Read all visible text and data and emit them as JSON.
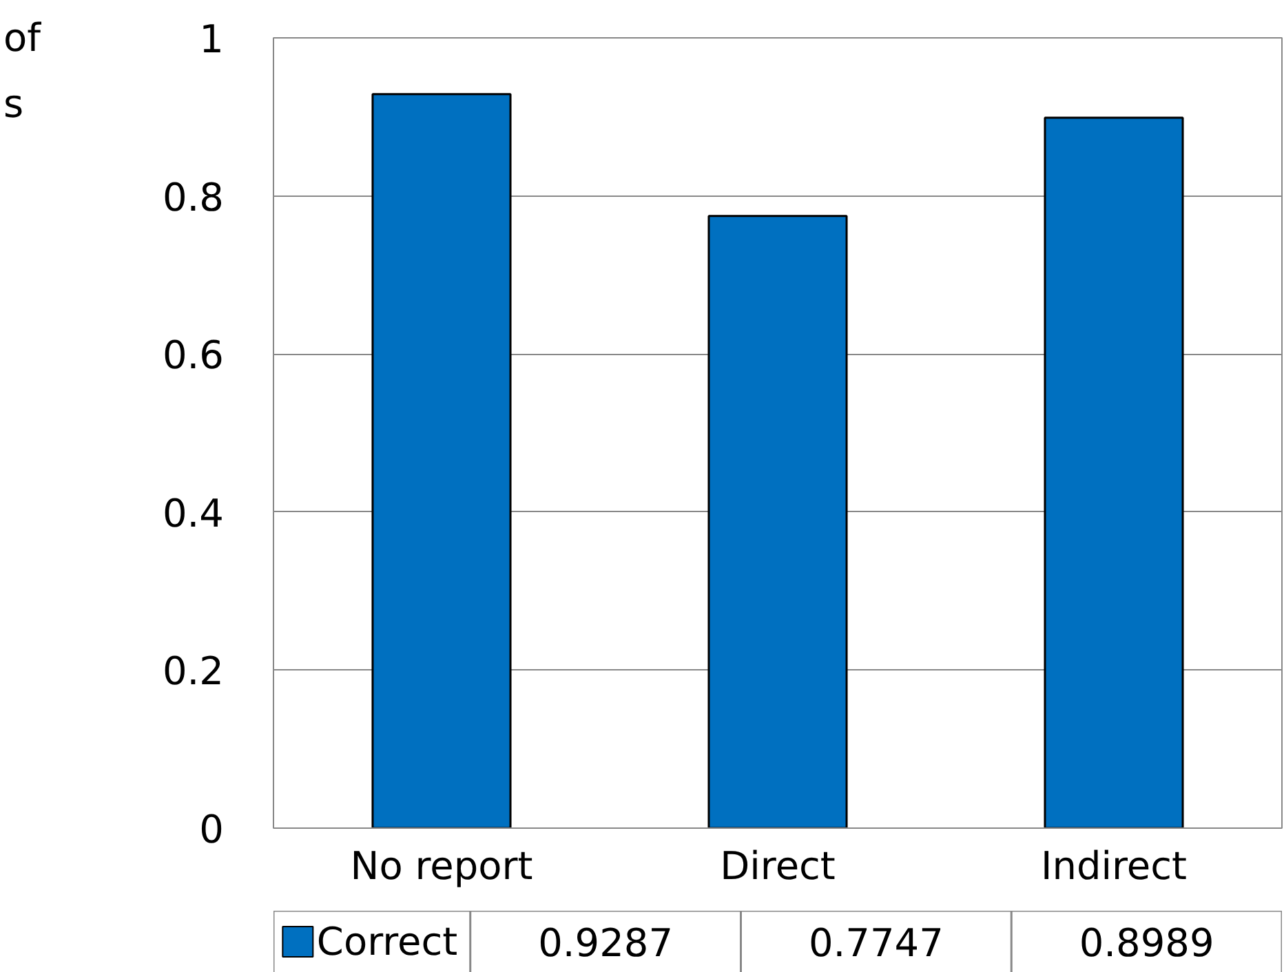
{
  "chart_data": {
    "type": "bar",
    "ylabel": "of\ns",
    "categories": [
      "No report",
      "Direct",
      "Indirect"
    ],
    "series": [
      {
        "name": "Correct",
        "color": "#0070c0",
        "values": [
          0.9287,
          0.7747,
          0.8989
        ]
      }
    ],
    "ylim": [
      0,
      1
    ],
    "yticks": [
      0,
      0.2,
      0.4,
      0.6,
      0.8,
      1
    ],
    "grid": "y",
    "legend": "bottom",
    "data_labels": true
  }
}
